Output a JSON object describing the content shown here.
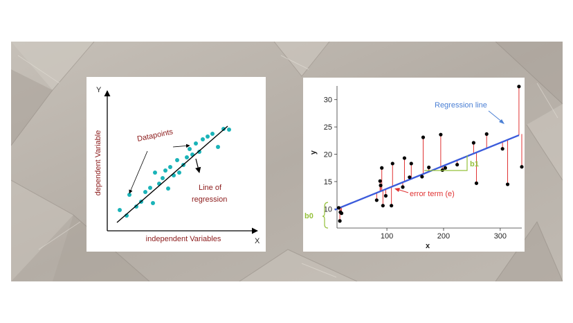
{
  "left_diagram": {
    "y_axis_letter": "Y",
    "x_axis_letter": "X",
    "y_axis_label": "dependent Variable",
    "x_axis_label": "independent Variables",
    "datapoints_label": "Datapoints",
    "line_label_line1": "Line of",
    "line_label_line2": "regression",
    "colors": {
      "points": "#1ab3b8",
      "annotation_text": "#8b1a1a",
      "axes": "#000000"
    }
  },
  "right_chart": {
    "chart_data": {
      "type": "scatter",
      "xlabel": "x",
      "ylabel": "y",
      "xticks": [
        "100",
        "200",
        "300"
      ],
      "yticks": [
        "10",
        "15",
        "20",
        "25",
        "30"
      ],
      "xlim": [
        12,
        338
      ],
      "ylim": [
        6.5,
        32.5
      ],
      "regression_line": {
        "intercept": 9.5,
        "slope": 0.042,
        "color": "#3b5bdb"
      },
      "points": [
        {
          "x": 15,
          "y": 10.2
        },
        {
          "x": 18,
          "y": 9.4
        },
        {
          "x": 20,
          "y": 9.2
        },
        {
          "x": 17,
          "y": 7.8
        },
        {
          "x": 82,
          "y": 11.6
        },
        {
          "x": 88,
          "y": 15.1
        },
        {
          "x": 89,
          "y": 14.3
        },
        {
          "x": 91,
          "y": 17.5
        },
        {
          "x": 93,
          "y": 10.6
        },
        {
          "x": 98,
          "y": 12.4
        },
        {
          "x": 108,
          "y": 10.6
        },
        {
          "x": 110,
          "y": 18.3
        },
        {
          "x": 128,
          "y": 14.0
        },
        {
          "x": 131,
          "y": 19.3
        },
        {
          "x": 140,
          "y": 15.8
        },
        {
          "x": 143,
          "y": 18.3
        },
        {
          "x": 162,
          "y": 15.9
        },
        {
          "x": 164,
          "y": 23.1
        },
        {
          "x": 174,
          "y": 17.6
        },
        {
          "x": 195,
          "y": 23.6
        },
        {
          "x": 198,
          "y": 17.1
        },
        {
          "x": 203,
          "y": 17.5
        },
        {
          "x": 224,
          "y": 18.1
        },
        {
          "x": 253,
          "y": 22.1
        },
        {
          "x": 258,
          "y": 14.7
        },
        {
          "x": 276,
          "y": 23.7
        },
        {
          "x": 304,
          "y": 21.0
        },
        {
          "x": 313,
          "y": 14.5
        },
        {
          "x": 333,
          "y": 32.4
        },
        {
          "x": 338,
          "y": 17.7
        }
      ],
      "residual_color": "#e03131",
      "point_color": "#000000"
    },
    "annotations": {
      "regression_line_label": "Regression line",
      "error_term_label": "error term (e)",
      "slope_label": "b1",
      "intercept_label": "b0"
    },
    "colors": {
      "regression_label": "#4a7fd4",
      "error_label": "#e03131",
      "b_labels": "#94c03a"
    }
  }
}
